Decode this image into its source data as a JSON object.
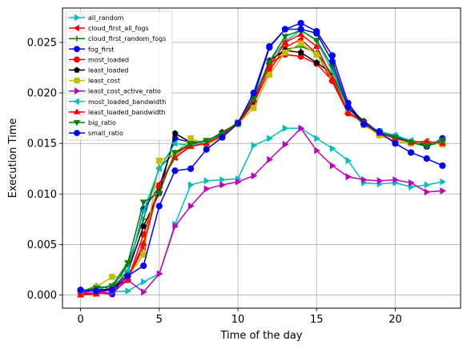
{
  "chart_data": {
    "type": "line",
    "xlabel": "Time of the day",
    "ylabel": "Execution Time",
    "xlim": [
      -1.15,
      24.15
    ],
    "ylim": [
      -0.0013,
      0.0284
    ],
    "x_ticks": [
      0,
      5,
      10,
      15,
      20
    ],
    "y_ticks": [
      0.0,
      0.005,
      0.01,
      0.015,
      0.02,
      0.025
    ],
    "y_tick_labels": [
      "0.000",
      "0.005",
      "0.010",
      "0.015",
      "0.020",
      "0.025"
    ],
    "grid": true,
    "legend_position": "upper-left",
    "x": [
      0,
      1,
      2,
      3,
      4,
      5,
      6,
      7,
      8,
      9,
      10,
      11,
      12,
      13,
      14,
      15,
      16,
      17,
      18,
      19,
      20,
      21,
      22,
      23
    ],
    "series": [
      {
        "name": "all_random",
        "color": "#00bfbf",
        "marker": "triangle-right",
        "values": [
          0.0002,
          0.0001,
          0.0003,
          0.0004,
          0.0013,
          0.0021,
          0.007,
          0.0109,
          0.0113,
          0.0114,
          0.0115,
          0.0148,
          0.0155,
          0.0165,
          0.0165,
          0.0155,
          0.0145,
          0.0133,
          0.0111,
          0.011,
          0.0111,
          0.0107,
          0.0109,
          0.0112
        ]
      },
      {
        "name": "cloud_first_all_fogs",
        "color": "#ff0000",
        "marker": "triangle-left",
        "values": [
          0.0001,
          0.0002,
          0.0001,
          0.0016,
          0.0047,
          0.011,
          0.0136,
          0.0148,
          0.0151,
          0.0157,
          0.0169,
          0.019,
          0.0222,
          0.0245,
          0.0253,
          0.0239,
          0.0211,
          0.018,
          0.017,
          0.0161,
          0.0155,
          0.0151,
          0.0152,
          0.0149
        ]
      },
      {
        "name": "cloud_first_random_fogs",
        "color": "#008000",
        "marker": "plus",
        "values": [
          0.0003,
          0.0009,
          0.0006,
          0.003,
          0.0075,
          0.0126,
          0.0141,
          0.0148,
          0.0152,
          0.0159,
          0.017,
          0.0192,
          0.0232,
          0.0243,
          0.0246,
          0.024,
          0.0218,
          0.0181,
          0.017,
          0.016,
          0.0156,
          0.0152,
          0.0148,
          0.0151
        ]
      },
      {
        "name": "fog_first",
        "color": "#0000ff",
        "marker": "circle",
        "values": [
          0.0004,
          0.0004,
          0.0001,
          0.0021,
          0.0085,
          0.0107,
          0.0155,
          0.0151,
          0.0152,
          0.016,
          0.017,
          0.0196,
          0.0245,
          0.0263,
          0.0269,
          0.0261,
          0.0237,
          0.019,
          0.0169,
          0.0162,
          0.0157,
          0.0151,
          0.0147,
          0.0155
        ]
      },
      {
        "name": "most_loaded",
        "color": "#ff0000",
        "marker": "circle",
        "values": [
          0.0002,
          0.0005,
          0.0006,
          0.0015,
          0.006,
          0.0107,
          0.0139,
          0.015,
          0.015,
          0.0157,
          0.0169,
          0.019,
          0.0229,
          0.0238,
          0.0236,
          0.0229,
          0.0212,
          0.018,
          0.017,
          0.0159,
          0.0152,
          0.015,
          0.015,
          0.015
        ]
      },
      {
        "name": "least_loaded",
        "color": "#000000",
        "marker": "pentagon",
        "values": [
          0.0003,
          0.0006,
          0.0005,
          0.0023,
          0.0068,
          0.0101,
          0.016,
          0.0151,
          0.0152,
          0.0161,
          0.017,
          0.0192,
          0.0232,
          0.0242,
          0.024,
          0.023,
          0.0219,
          0.0186,
          0.0172,
          0.0161,
          0.0155,
          0.0152,
          0.0149,
          0.0152
        ]
      },
      {
        "name": "least_cost",
        "color": "#bfbf00",
        "marker": "square",
        "values": [
          0.0003,
          0.0008,
          0.0018,
          0.0018,
          0.004,
          0.0133,
          0.014,
          0.0155,
          0.0149,
          0.0156,
          0.0169,
          0.0185,
          0.0218,
          0.024,
          0.0249,
          0.0238,
          0.0215,
          0.0182,
          0.0168,
          0.0158,
          0.0152,
          0.015,
          0.0151,
          0.0149
        ]
      },
      {
        "name": "least_cost_active_ratio",
        "color": "#bf00bf",
        "marker": "triangle-right",
        "values": [
          0.0002,
          0.0002,
          0.0002,
          0.0015,
          0.0003,
          0.0021,
          0.0068,
          0.0088,
          0.0105,
          0.0109,
          0.0112,
          0.0118,
          0.0134,
          0.0149,
          0.0165,
          0.0143,
          0.0128,
          0.0117,
          0.0114,
          0.0113,
          0.0114,
          0.0111,
          0.0102,
          0.0103
        ]
      },
      {
        "name": "most_loaded_bandwidth",
        "color": "#00bfbf",
        "marker": "triangle-left",
        "values": [
          0.0004,
          0.0005,
          0.001,
          0.0024,
          0.0083,
          0.0125,
          0.015,
          0.0148,
          0.0152,
          0.016,
          0.017,
          0.0193,
          0.0231,
          0.0251,
          0.0262,
          0.0252,
          0.0221,
          0.0185,
          0.017,
          0.0162,
          0.0158,
          0.0153,
          0.015,
          0.0153
        ]
      },
      {
        "name": "least_loaded_bandwidth",
        "color": "#ff0000",
        "marker": "triangle-up",
        "values": [
          0.0,
          0.0001,
          0.0006,
          0.0016,
          0.0051,
          0.0108,
          0.0136,
          0.0147,
          0.015,
          0.0158,
          0.017,
          0.0193,
          0.0226,
          0.025,
          0.0258,
          0.0246,
          0.0214,
          0.0181,
          0.0171,
          0.016,
          0.0155,
          0.0151,
          0.0152,
          0.015
        ]
      },
      {
        "name": "big_ratio",
        "color": "#008000",
        "marker": "triangle-down",
        "values": [
          0.0004,
          0.0007,
          0.0009,
          0.0032,
          0.0092,
          0.0101,
          0.0141,
          0.015,
          0.0153,
          0.016,
          0.0171,
          0.0195,
          0.0231,
          0.0256,
          0.0262,
          0.0252,
          0.0226,
          0.0185,
          0.017,
          0.0161,
          0.0156,
          0.0151,
          0.0147,
          0.0153
        ]
      },
      {
        "name": "small_ratio",
        "color": "#0000ff",
        "marker": "circle",
        "values": [
          0.0005,
          0.0004,
          0.0005,
          0.0019,
          0.0029,
          0.0088,
          0.0123,
          0.0125,
          0.0144,
          0.0156,
          0.017,
          0.02,
          0.0246,
          0.0263,
          0.0263,
          0.0259,
          0.0231,
          0.0186,
          0.0169,
          0.0161,
          0.015,
          0.0141,
          0.0135,
          0.0128
        ]
      }
    ]
  }
}
